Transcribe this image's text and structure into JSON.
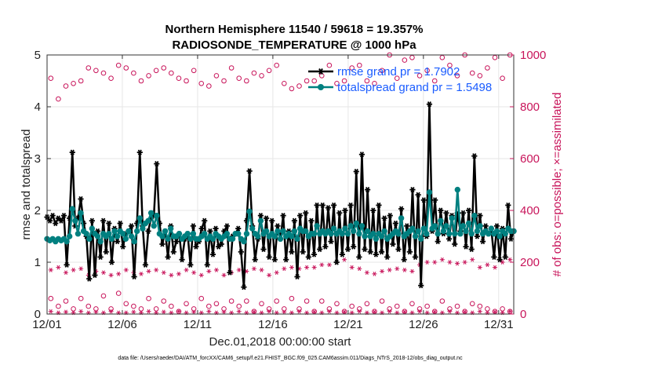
{
  "chart_data": {
    "type": "line",
    "title": "Northern Hemisphere 11540 / 59618 = 19.357%",
    "subtitle": "RADIOSONDE_TEMPERATURE @ 1000 hPa",
    "xlabel": "Dec.01,2018 00:00:00 start",
    "ylabel": "rmse and totalspread",
    "ylabel_right": "# of obs: o=possible; ×=assimilated",
    "xlim": [
      0,
      31
    ],
    "ylim": [
      0,
      5
    ],
    "ylim_right": [
      0,
      1000
    ],
    "x_ticks": [
      0,
      5,
      10,
      15,
      20,
      25,
      30
    ],
    "x_tick_labels": [
      "12/01",
      "12/06",
      "12/11",
      "12/16",
      "12/21",
      "12/26",
      "12/31"
    ],
    "y_ticks": [
      0,
      1,
      2,
      3,
      4,
      5
    ],
    "y_ticks_right": [
      0,
      200,
      400,
      600,
      800,
      1000
    ],
    "grid": true,
    "legend_position": "top-right",
    "series": [
      {
        "name": "rmse",
        "legend_label": "rmse grand pr = 1.7902",
        "color": "#000000",
        "marker": "star",
        "axis": "left",
        "values": [
          1.87,
          1.8,
          1.9,
          1.75,
          1.85,
          1.8,
          1.9,
          0.95,
          1.85,
          3.12,
          1.7,
          1.85,
          2.22,
          1.75,
          1.5,
          0.68,
          1.8,
          0.75,
          1.6,
          1.1,
          1.8,
          1.2,
          1.75,
          1.0,
          1.65,
          1.4,
          1.75,
          1.3,
          1.55,
          1.6,
          1.7,
          0.72,
          1.75,
          3.12,
          1.7,
          0.95,
          1.6,
          1.85,
          1.9,
          2.9,
          1.75,
          1.35,
          1.6,
          1.1,
          1.7,
          1.2,
          1.4,
          1.55,
          1.05,
          1.45,
          1.55,
          0.95,
          1.7,
          1.3,
          1.4,
          1.65,
          1.8,
          0.95,
          1.6,
          1.15,
          1.65,
          1.3,
          1.35,
          1.6,
          1.7,
          0.8,
          1.5,
          1.55,
          1.65,
          1.2,
          0.52,
          1.8,
          2.76,
          1.7,
          1.05,
          1.45,
          1.9,
          1.25,
          1.85,
          1.1,
          1.8,
          1.05,
          1.7,
          1.45,
          1.9,
          1.05,
          1.6,
          1.2,
          1.8,
          0.72,
          1.9,
          1.2,
          1.95,
          1.1,
          1.8,
          1.15,
          2.1,
          1.25,
          2.1,
          1.3,
          2.05,
          1.4,
          2.1,
          1.0,
          1.95,
          1.15,
          2.0,
          1.25,
          2.1,
          1.3,
          2.75,
          1.1,
          3.08,
          1.25,
          2.4,
          1.2,
          2.0,
          1.15,
          2.1,
          1.2,
          1.85,
          1.1,
          1.9,
          1.35,
          1.75,
          1.25,
          2.03,
          1.05,
          1.7,
          1.2,
          2.4,
          1.1,
          2.3,
          0.55,
          2.2,
          1.5,
          4.05,
          1.6,
          2.2,
          1.4,
          2.0,
          1.55,
          1.95,
          1.45,
          1.9,
          1.35,
          1.95,
          1.6,
          1.95,
          1.3,
          2.0,
          1.25,
          3.05,
          1.5,
          1.9,
          1.4,
          1.7,
          1.55,
          1.65,
          1.1,
          1.7,
          1.05,
          1.65,
          1.1,
          2.1,
          1.45,
          1.6
        ]
      },
      {
        "name": "totalspread",
        "legend_label": "totalspread grand pr = 1.5498",
        "color": "#008080",
        "marker": "circle",
        "axis": "left",
        "values": [
          1.45,
          1.42,
          1.45,
          1.4,
          1.45,
          1.42,
          1.45,
          1.4,
          1.5,
          2.03,
          1.8,
          1.55,
          1.95,
          1.6,
          1.55,
          1.45,
          1.65,
          1.55,
          1.5,
          1.4,
          1.55,
          1.5,
          1.55,
          1.45,
          1.6,
          1.5,
          1.6,
          1.55,
          1.45,
          1.6,
          1.5,
          1.4,
          1.6,
          1.85,
          1.65,
          1.75,
          1.8,
          1.95,
          1.7,
          1.9,
          1.55,
          1.5,
          1.6,
          1.45,
          1.65,
          1.5,
          1.5,
          1.55,
          1.45,
          1.5,
          1.55,
          1.45,
          1.55,
          1.45,
          1.45,
          1.5,
          1.55,
          1.45,
          1.5,
          1.45,
          1.55,
          1.5,
          1.45,
          1.5,
          1.55,
          1.45,
          1.45,
          1.55,
          1.55,
          1.45,
          1.4,
          1.55,
          1.98,
          1.65,
          1.55,
          1.5,
          1.8,
          1.55,
          1.6,
          1.5,
          1.55,
          1.5,
          1.6,
          1.45,
          1.6,
          1.5,
          1.55,
          1.5,
          1.6,
          1.45,
          1.65,
          1.6,
          1.6,
          1.5,
          1.55,
          1.55,
          1.7,
          1.55,
          1.6,
          1.55,
          1.6,
          1.55,
          1.65,
          1.55,
          1.6,
          1.55,
          1.65,
          1.55,
          1.7,
          1.6,
          1.75,
          1.55,
          1.7,
          1.5,
          1.6,
          1.5,
          1.55,
          1.45,
          1.55,
          1.5,
          1.6,
          1.45,
          1.5,
          1.55,
          1.6,
          1.55,
          1.85,
          1.5,
          1.55,
          1.6,
          1.65,
          1.5,
          1.6,
          1.45,
          1.65,
          1.55,
          2.35,
          1.65,
          1.7,
          1.55,
          1.8,
          1.6,
          1.7,
          1.55,
          1.85,
          1.55,
          2.4,
          1.55,
          1.7,
          1.6,
          1.75,
          1.55,
          1.9,
          1.6,
          1.7,
          1.55,
          1.6,
          1.55,
          1.65,
          1.55,
          1.6,
          1.5,
          1.6,
          1.55,
          1.65,
          1.6,
          1.6
        ]
      },
      {
        "name": "possible",
        "color": "#c8145a",
        "marker": "open-circle",
        "axis": "right",
        "values_12z": [
          910,
          830,
          880,
          890,
          900,
          950,
          940,
          930,
          910,
          960,
          950,
          930,
          900,
          920,
          940,
          950,
          930,
          910,
          900,
          940,
          890,
          880,
          920,
          900,
          950,
          910,
          900,
          930,
          920,
          940,
          960,
          890,
          870,
          880,
          900,
          900,
          920,
          960,
          890,
          900,
          950,
          960,
          900,
          890,
          940,
          1000,
          910,
          980,
          990,
          920,
          940,
          900,
          990,
          960,
          920,
          1000,
          930,
          920,
          950,
          990,
          910,
          1000
        ],
        "values_00z": [
          60,
          30,
          50,
          20,
          60,
          30,
          20,
          70,
          20,
          80,
          40,
          30,
          20,
          60,
          20,
          50,
          30,
          10,
          40,
          20,
          60,
          30,
          40,
          20,
          50,
          30,
          50,
          10,
          40,
          20,
          50,
          20,
          60,
          20,
          50,
          10,
          50,
          20,
          40,
          10,
          30,
          20,
          40,
          10,
          50,
          20,
          30,
          10,
          40,
          20,
          30,
          10,
          50,
          20,
          30,
          10,
          40,
          30,
          20,
          10,
          20,
          10
        ]
      },
      {
        "name": "assimilated",
        "color": "#c8145a",
        "marker": "star",
        "axis": "right",
        "values_12z": [
          170,
          180,
          160,
          170,
          175,
          150,
          165,
          160,
          150,
          155,
          170,
          160,
          155,
          165,
          170,
          160,
          150,
          155,
          170,
          160,
          150,
          165,
          170,
          150,
          160,
          170,
          165,
          175,
          170,
          150,
          160,
          175,
          180,
          175,
          180,
          180,
          190,
          190,
          200,
          210,
          180,
          175,
          160,
          155,
          165,
          170,
          175,
          170,
          165,
          190,
          200,
          200,
          210,
          200,
          195,
          200,
          210,
          180,
          190,
          180,
          200,
          210
        ],
        "values_00z": [
          10,
          5,
          8,
          5,
          10,
          5,
          8,
          5,
          10,
          5,
          5,
          8,
          5,
          10,
          5,
          8,
          5,
          10,
          5,
          8,
          5,
          10,
          5,
          8,
          5,
          10,
          5,
          8,
          5,
          10,
          5,
          8,
          5,
          10,
          5,
          8,
          5,
          10,
          5,
          8,
          5,
          10,
          5,
          8,
          5,
          10,
          5,
          8,
          5,
          10,
          5,
          8,
          5,
          10,
          5,
          8,
          5,
          10,
          5,
          8,
          5,
          10
        ]
      }
    ]
  },
  "footnote": "data file: /Users/raeder/DAI/ATM_forcXX/CAM6_setup/f.e21.FHIST_BGC.f09_025.CAM6assim.011/Diags_NTrS_2018-12/obs_diag_output.nc"
}
